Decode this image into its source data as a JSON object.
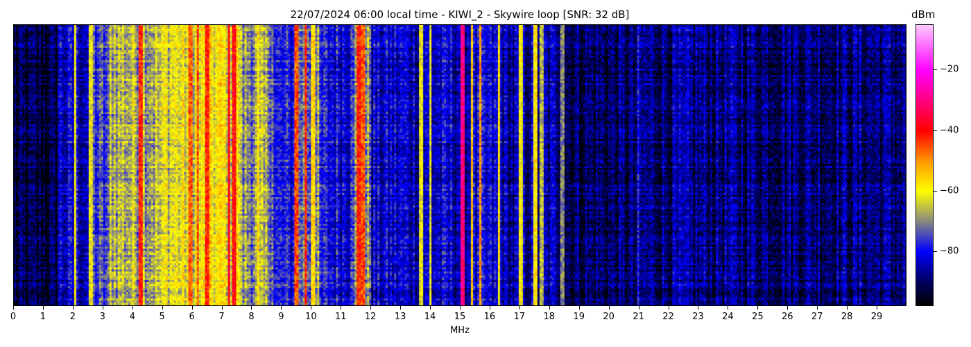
{
  "chart_data": {
    "type": "heatmap",
    "title": "22/07/2024 06:00 local time - KIWI_2 - Skywire loop [SNR: 32 dB]",
    "xlabel": "MHz",
    "ylabel": "",
    "xlim": [
      0,
      30
    ],
    "x_ticks": [
      "0",
      "1",
      "2",
      "3",
      "4",
      "5",
      "6",
      "7",
      "8",
      "9",
      "10",
      "11",
      "12",
      "13",
      "14",
      "15",
      "16",
      "17",
      "18",
      "19",
      "20",
      "21",
      "22",
      "23",
      "24",
      "25",
      "26",
      "27",
      "28",
      "29"
    ],
    "colorbar": {
      "label": "dBm",
      "range": [
        -98,
        -5
      ],
      "ticks": [
        "−20",
        "−40",
        "−60",
        "−80"
      ],
      "tick_values": [
        -20,
        -40,
        -60,
        -80
      ],
      "colormap": [
        {
          "v": -98,
          "c": "#000000"
        },
        {
          "v": -90,
          "c": "#000060"
        },
        {
          "v": -80,
          "c": "#0000ff"
        },
        {
          "v": -70,
          "c": "#8a8a80"
        },
        {
          "v": -60,
          "c": "#ffff00"
        },
        {
          "v": -50,
          "c": "#ff9900"
        },
        {
          "v": -40,
          "c": "#ff0000"
        },
        {
          "v": -30,
          "c": "#ff0080"
        },
        {
          "v": -20,
          "c": "#ff00ff"
        },
        {
          "v": -5,
          "c": "#ffc8ff"
        }
      ]
    },
    "band_levels_dbm": [
      {
        "from": 0,
        "to": 1.5,
        "level": -93
      },
      {
        "from": 1.5,
        "to": 2.5,
        "level": -83
      },
      {
        "from": 2.5,
        "to": 3.2,
        "level": -76
      },
      {
        "from": 3.2,
        "to": 5.0,
        "level": -66
      },
      {
        "from": 5.0,
        "to": 6.5,
        "level": -62
      },
      {
        "from": 6.5,
        "to": 7.6,
        "level": -60
      },
      {
        "from": 7.6,
        "to": 8.7,
        "level": -69
      },
      {
        "from": 8.7,
        "to": 9.5,
        "level": -80
      },
      {
        "from": 9.5,
        "to": 10.3,
        "level": -72
      },
      {
        "from": 10.3,
        "to": 11.3,
        "level": -80
      },
      {
        "from": 11.3,
        "to": 12.0,
        "level": -71
      },
      {
        "from": 12.0,
        "to": 16.5,
        "level": -83
      },
      {
        "from": 16.5,
        "to": 18.5,
        "level": -86
      },
      {
        "from": 18.5,
        "to": 21.0,
        "level": -90
      },
      {
        "from": 21.0,
        "to": 30.0,
        "level": -88
      }
    ],
    "strong_signals": [
      {
        "mhz": 2.05,
        "level": -60
      },
      {
        "mhz": 2.6,
        "level": -62
      },
      {
        "mhz": 4.25,
        "level": -42
      },
      {
        "mhz": 5.95,
        "level": -46
      },
      {
        "mhz": 6.2,
        "level": -46
      },
      {
        "mhz": 6.5,
        "level": -42
      },
      {
        "mhz": 7.25,
        "level": -38
      },
      {
        "mhz": 7.4,
        "level": -40
      },
      {
        "mhz": 8.2,
        "level": -58
      },
      {
        "mhz": 9.5,
        "level": -45
      },
      {
        "mhz": 9.8,
        "level": -42
      },
      {
        "mhz": 10.05,
        "level": -56
      },
      {
        "mhz": 11.6,
        "level": -42
      },
      {
        "mhz": 11.75,
        "level": -45
      },
      {
        "mhz": 13.7,
        "level": -62
      },
      {
        "mhz": 14.0,
        "level": -62
      },
      {
        "mhz": 15.1,
        "level": -30
      },
      {
        "mhz": 15.4,
        "level": -55
      },
      {
        "mhz": 15.7,
        "level": -50
      },
      {
        "mhz": 16.3,
        "level": -58
      },
      {
        "mhz": 17.05,
        "level": -60
      },
      {
        "mhz": 17.55,
        "level": -58
      },
      {
        "mhz": 17.75,
        "level": -66
      },
      {
        "mhz": 18.45,
        "level": -70
      },
      {
        "mhz": 21.0,
        "level": -78
      }
    ]
  }
}
